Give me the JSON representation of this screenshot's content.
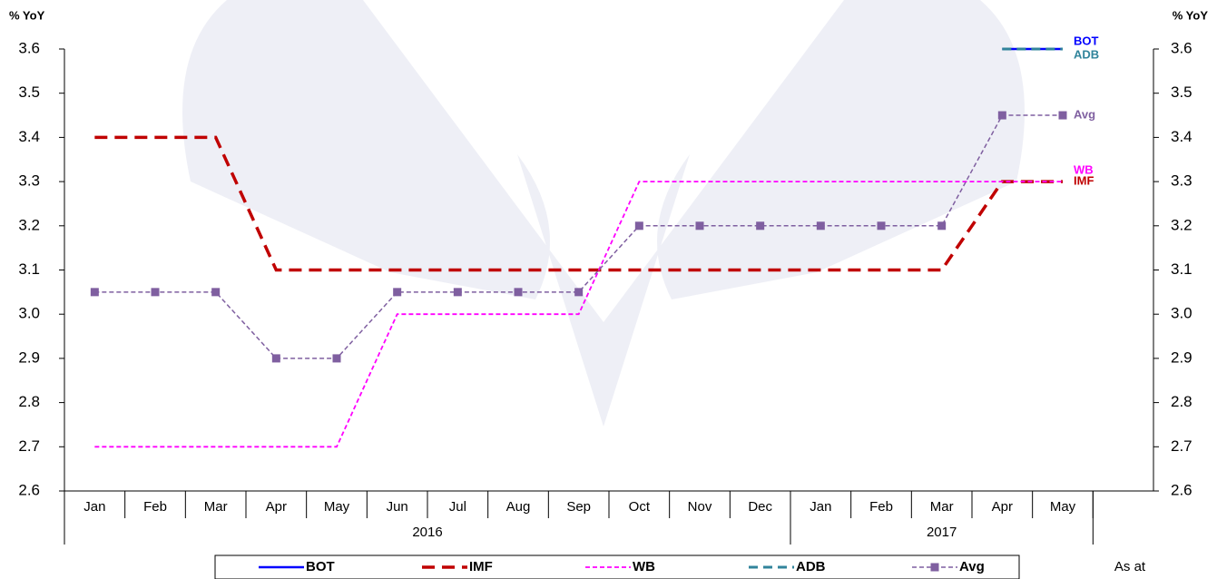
{
  "chart_data": {
    "type": "line",
    "ylabel": "% YoY",
    "y2label": "% YoY",
    "categories": [
      "Jan",
      "Feb",
      "Mar",
      "Apr",
      "May",
      "Jun",
      "Jul",
      "Aug",
      "Sep",
      "Oct",
      "Nov",
      "Dec",
      "Jan",
      "Feb",
      "Mar",
      "Apr",
      "May",
      null
    ],
    "x_groups": [
      {
        "label": "2016",
        "categories": 12
      },
      {
        "label": "2017",
        "categories": 5
      }
    ],
    "ylim": [
      2.6,
      3.6
    ],
    "yticks": [
      2.6,
      2.7,
      2.8,
      2.9,
      {
        "value": 3,
        "label": "3.0"
      },
      3.1,
      3.2,
      3.3,
      3.4,
      3.5,
      3.6
    ],
    "y2lim": [
      2.6,
      3.6
    ],
    "y2ticks": [
      2.6,
      2.7,
      2.8,
      2.9,
      {
        "value": 3,
        "label": "3.0"
      },
      3.1,
      3.2,
      3.3,
      3.4,
      3.5,
      3.6
    ],
    "series": [
      {
        "name": "BOT",
        "color": "#0000ff",
        "values": [
          null,
          null,
          null,
          null,
          null,
          null,
          null,
          null,
          null,
          null,
          null,
          null,
          null,
          null,
          null,
          3.6,
          3.6,
          null
        ]
      },
      {
        "name": "IMF",
        "color": "#c00000",
        "values": [
          3.4,
          3.4,
          3.4,
          3.1,
          3.1,
          3.1,
          3.1,
          3.1,
          3.1,
          3.1,
          3.1,
          3.1,
          3.1,
          3.1,
          3.1,
          3.3,
          3.3,
          null
        ]
      },
      {
        "name": "WB",
        "color": "#ff00ff",
        "values": [
          2.7,
          2.7,
          2.7,
          2.7,
          2.7,
          3.0,
          3.0,
          3.0,
          3.0,
          3.3,
          3.3,
          3.3,
          3.3,
          3.3,
          3.3,
          3.3,
          3.3,
          null
        ]
      },
      {
        "name": "ADB",
        "color": "#31849b",
        "values": [
          null,
          null,
          null,
          null,
          null,
          null,
          null,
          null,
          null,
          null,
          null,
          null,
          null,
          null,
          null,
          3.6,
          3.6,
          null
        ]
      },
      {
        "name": "Avg",
        "color": "#7f5fa0",
        "values": [
          3.05,
          3.05,
          3.05,
          2.9,
          2.9,
          3.05,
          3.05,
          3.05,
          3.05,
          3.2,
          3.2,
          3.2,
          3.2,
          3.2,
          3.2,
          3.45,
          3.45,
          null
        ]
      }
    ],
    "legend": "bottom",
    "note": "As at"
  }
}
